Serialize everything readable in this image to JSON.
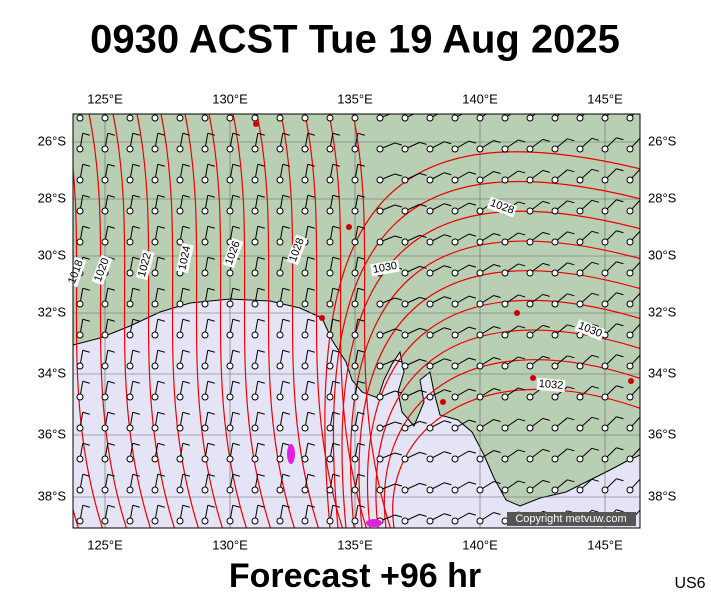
{
  "header": {
    "title": "0930 ACST Tue 19 Aug 2025"
  },
  "map": {
    "lon_labels": [
      "125°E",
      "130°E",
      "135°E",
      "140°E",
      "145°E"
    ],
    "lat_labels": [
      "26°S",
      "28°S",
      "30°S",
      "32°S",
      "34°S",
      "36°S",
      "38°S"
    ],
    "contour_labels": [
      "1018",
      "1020",
      "1022",
      "1024",
      "1026",
      "1028",
      "1030",
      "1028",
      "1030",
      "1032"
    ],
    "copyright": "Copyright metvuw.com"
  },
  "footer": {
    "forecast": "Forecast +96 hr",
    "code": "US6"
  }
}
